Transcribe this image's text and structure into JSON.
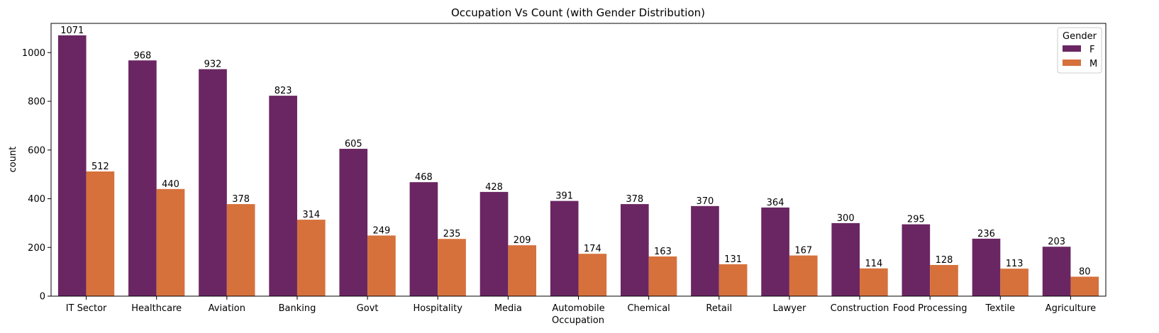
{
  "chart_data": {
    "type": "bar",
    "title": "Occupation Vs Count (with Gender Distribution)",
    "xlabel": "Occupation",
    "ylabel": "count",
    "ylim": [
      0,
      1120
    ],
    "yticks": [
      0,
      200,
      400,
      600,
      800,
      1000
    ],
    "grid": false,
    "categories": [
      "IT Sector",
      "Healthcare",
      "Aviation",
      "Banking",
      "Govt",
      "Hospitality",
      "Media",
      "Automobile",
      "Chemical",
      "Retail",
      "Lawyer",
      "Construction",
      "Food Processing",
      "Textile",
      "Agriculture"
    ],
    "series": [
      {
        "name": "F",
        "color": "#6a2662",
        "values": [
          1071,
          968,
          932,
          823,
          605,
          468,
          428,
          391,
          378,
          370,
          364,
          300,
          295,
          236,
          203
        ]
      },
      {
        "name": "M",
        "color": "#d6713c",
        "values": [
          512,
          440,
          378,
          314,
          249,
          235,
          209,
          174,
          163,
          131,
          167,
          114,
          128,
          113,
          80
        ]
      }
    ],
    "legend": {
      "title": "Gender",
      "placement": "top-right"
    }
  }
}
